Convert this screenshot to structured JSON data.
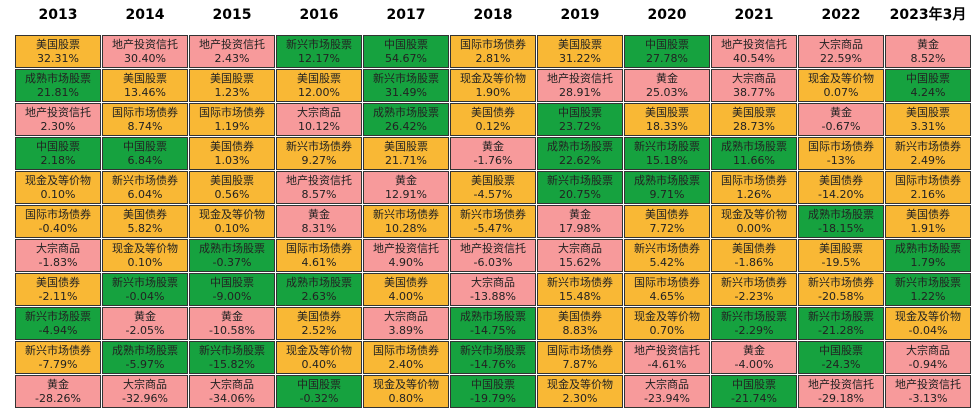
{
  "colors": {
    "美国股票": "#f9b835",
    "新兴市场股票": "#16a23f",
    "成熟市场股票": "#16a23f",
    "中国股票": "#16a23f",
    "地产投资信托": "#f79a9b",
    "国际市场债券": "#f9b835",
    "美国债券": "#f9b835",
    "新兴市场债券": "#f9b835",
    "现金及等价物": "#f9b835",
    "大宗商品": "#f79a9b",
    "黄金": "#f79a9b"
  },
  "years": [
    "2013",
    "2014",
    "2015",
    "2016",
    "2017",
    "2018",
    "2019",
    "2020",
    "2021",
    "2022",
    "2023年3月"
  ],
  "columns": [
    [
      {
        "asset": "美国股票",
        "value": "32.31%"
      },
      {
        "asset": "成熟市场股票",
        "value": "21.81%"
      },
      {
        "asset": "地产投资信托",
        "value": "2.30%"
      },
      {
        "asset": "中国股票",
        "value": "2.18%"
      },
      {
        "asset": "现金及等价物",
        "value": "0.10%"
      },
      {
        "asset": "国际市场债券",
        "value": "-0.40%"
      },
      {
        "asset": "大宗商品",
        "value": "-1.83%"
      },
      {
        "asset": "美国债券",
        "value": "-2.11%"
      },
      {
        "asset": "新兴市场股票",
        "value": "-4.94%"
      },
      {
        "asset": "新兴市场债券",
        "value": "-7.79%"
      },
      {
        "asset": "黄金",
        "value": "-28.26%"
      }
    ],
    [
      {
        "asset": "地产投资信托",
        "value": "30.40%"
      },
      {
        "asset": "美国股票",
        "value": "13.46%"
      },
      {
        "asset": "国际市场债券",
        "value": "8.74%"
      },
      {
        "asset": "中国股票",
        "value": "6.84%"
      },
      {
        "asset": "新兴市场债券",
        "value": "6.04%"
      },
      {
        "asset": "美国债券",
        "value": "5.82%"
      },
      {
        "asset": "现金及等价物",
        "value": "0.10%"
      },
      {
        "asset": "新兴市场股票",
        "value": "-0.04%"
      },
      {
        "asset": "黄金",
        "value": "-2.05%"
      },
      {
        "asset": "成熟市场股票",
        "value": "-5.97%"
      },
      {
        "asset": "大宗商品",
        "value": "-32.96%"
      }
    ],
    [
      {
        "asset": "地产投资信托",
        "value": "2.43%"
      },
      {
        "asset": "美国股票",
        "value": "1.23%"
      },
      {
        "asset": "国际市场债券",
        "value": "1.19%"
      },
      {
        "asset": "美国债券",
        "value": "1.03%"
      },
      {
        "asset": "美国股票",
        "value": "0.56%"
      },
      {
        "asset": "现金及等价物",
        "value": "0.10%"
      },
      {
        "asset": "成熟市场股票",
        "value": "-0.37%"
      },
      {
        "asset": "中国股票",
        "value": "-9.00%"
      },
      {
        "asset": "黄金",
        "value": "-10.58%"
      },
      {
        "asset": "新兴市场股票",
        "value": "-15.82%"
      },
      {
        "asset": "大宗商品",
        "value": "-34.06%"
      }
    ],
    [
      {
        "asset": "新兴市场股票",
        "value": "12.17%"
      },
      {
        "asset": "美国股票",
        "value": "12.00%"
      },
      {
        "asset": "大宗商品",
        "value": "10.12%"
      },
      {
        "asset": "新兴市场债券",
        "value": "9.27%"
      },
      {
        "asset": "地产投资信托",
        "value": "8.57%"
      },
      {
        "asset": "黄金",
        "value": "8.31%"
      },
      {
        "asset": "国际市场债券",
        "value": "4.61%"
      },
      {
        "asset": "成熟市场股票",
        "value": "2.63%"
      },
      {
        "asset": "美国债券",
        "value": "2.52%"
      },
      {
        "asset": "现金及等价物",
        "value": "0.40%"
      },
      {
        "asset": "中国股票",
        "value": "-0.32%"
      }
    ],
    [
      {
        "asset": "中国股票",
        "value": "54.67%"
      },
      {
        "asset": "新兴市场股票",
        "value": "31.49%"
      },
      {
        "asset": "成熟市场股票",
        "value": "26.42%"
      },
      {
        "asset": "美国股票",
        "value": "21.71%"
      },
      {
        "asset": "黄金",
        "value": "12.91%"
      },
      {
        "asset": "新兴市场债券",
        "value": "10.28%"
      },
      {
        "asset": "地产投资信托",
        "value": "4.90%"
      },
      {
        "asset": "美国债券",
        "value": "4.00%"
      },
      {
        "asset": "大宗商品",
        "value": "3.89%"
      },
      {
        "asset": "国际市场债券",
        "value": "2.40%"
      },
      {
        "asset": "现金及等价物",
        "value": "0.80%"
      }
    ],
    [
      {
        "asset": "国际市场债券",
        "value": "2.81%"
      },
      {
        "asset": "现金及等价物",
        "value": "1.90%"
      },
      {
        "asset": "美国债券",
        "value": "0.12%"
      },
      {
        "asset": "黄金",
        "value": "-1.76%"
      },
      {
        "asset": "美国股票",
        "value": "-4.57%"
      },
      {
        "asset": "新兴市场债券",
        "value": "-5.47%"
      },
      {
        "asset": "地产投资信托",
        "value": "-6.03%"
      },
      {
        "asset": "大宗商品",
        "value": "-13.88%"
      },
      {
        "asset": "成熟市场股票",
        "value": "-14.75%"
      },
      {
        "asset": "新兴市场股票",
        "value": "-14.76%"
      },
      {
        "asset": "中国股票",
        "value": "-19.79%"
      }
    ],
    [
      {
        "asset": "美国股票",
        "value": "31.22%"
      },
      {
        "asset": "地产投资信托",
        "value": "28.91%"
      },
      {
        "asset": "中国股票",
        "value": "23.72%"
      },
      {
        "asset": "成熟市场股票",
        "value": "22.62%"
      },
      {
        "asset": "新兴市场股票",
        "value": "20.75%"
      },
      {
        "asset": "黄金",
        "value": "17.98%"
      },
      {
        "asset": "大宗商品",
        "value": "15.62%"
      },
      {
        "asset": "新兴市场债券",
        "value": "15.48%"
      },
      {
        "asset": "美国债券",
        "value": "8.83%"
      },
      {
        "asset": "国际市场债券",
        "value": "7.87%"
      },
      {
        "asset": "现金及等价物",
        "value": "2.30%"
      }
    ],
    [
      {
        "asset": "中国股票",
        "value": "27.78%"
      },
      {
        "asset": "黄金",
        "value": "25.03%"
      },
      {
        "asset": "美国股票",
        "value": "18.33%"
      },
      {
        "asset": "新兴市场股票",
        "value": "15.18%"
      },
      {
        "asset": "成熟市场股票",
        "value": "9.71%"
      },
      {
        "asset": "美国债券",
        "value": "7.72%"
      },
      {
        "asset": "新兴市场债券",
        "value": "5.42%"
      },
      {
        "asset": "国际市场债券",
        "value": "4.65%"
      },
      {
        "asset": "现金及等价物",
        "value": "0.70%"
      },
      {
        "asset": "地产投资信托",
        "value": "-4.61%"
      },
      {
        "asset": "大宗商品",
        "value": "-23.94%"
      }
    ],
    [
      {
        "asset": "地产投资信托",
        "value": "40.54%"
      },
      {
        "asset": "大宗商品",
        "value": "38.77%"
      },
      {
        "asset": "美国股票",
        "value": "28.73%"
      },
      {
        "asset": "成熟市场股票",
        "value": "11.66%"
      },
      {
        "asset": "国际市场债券",
        "value": "1.26%"
      },
      {
        "asset": "现金及等价物",
        "value": "0.00%"
      },
      {
        "asset": "美国债券",
        "value": "-1.86%"
      },
      {
        "asset": "新兴市场债券",
        "value": "-2.23%"
      },
      {
        "asset": "新兴市场股票",
        "value": "-2.29%"
      },
      {
        "asset": "黄金",
        "value": "-4.00%"
      },
      {
        "asset": "中国股票",
        "value": "-21.74%"
      }
    ],
    [
      {
        "asset": "大宗商品",
        "value": "22.59%"
      },
      {
        "asset": "现金及等价物",
        "value": "0.07%"
      },
      {
        "asset": "黄金",
        "value": "-0.67%"
      },
      {
        "asset": "国际市场债券",
        "value": "-13%"
      },
      {
        "asset": "美国债券",
        "value": "-14.20%"
      },
      {
        "asset": "成熟市场股票",
        "value": "-18.15%"
      },
      {
        "asset": "美国股票",
        "value": "-19.5%"
      },
      {
        "asset": "新兴市场债券",
        "value": "-20.58%"
      },
      {
        "asset": "新兴市场股票",
        "value": "-21.28%"
      },
      {
        "asset": "中国股票",
        "value": "-24.3%"
      },
      {
        "asset": "地产投资信托",
        "value": "-29.18%"
      }
    ],
    [
      {
        "asset": "黄金",
        "value": "8.52%"
      },
      {
        "asset": "中国股票",
        "value": "4.24%"
      },
      {
        "asset": "美国股票",
        "value": "3.31%"
      },
      {
        "asset": "新兴市场债券",
        "value": "2.49%"
      },
      {
        "asset": "国际市场债券",
        "value": "2.16%"
      },
      {
        "asset": "美国债券",
        "value": "1.91%"
      },
      {
        "asset": "成熟市场股票",
        "value": "1.79%"
      },
      {
        "asset": "新兴市场股票",
        "value": "1.22%"
      },
      {
        "asset": "现金及等价物",
        "value": "-0.04%"
      },
      {
        "asset": "大宗商品",
        "value": "-0.94%"
      },
      {
        "asset": "地产投资信托",
        "value": "-3.13%"
      }
    ]
  ]
}
